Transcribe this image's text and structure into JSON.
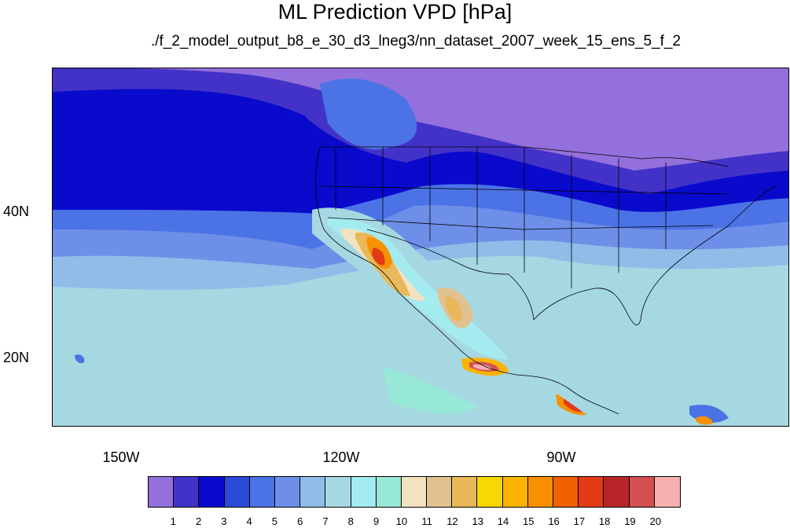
{
  "title": "ML Prediction VPD [hPa]",
  "subtitle": "./f_2_model_output_b8_e_30_d3_lneg3/nn_dataset_2007_week_15_ens_5_f_2",
  "lat_labels": [
    "40N",
    "20N"
  ],
  "lon_labels": [
    "150W",
    "120W",
    "90W"
  ],
  "colorbar": {
    "colors": [
      "#9370db",
      "#4332c8",
      "#0a0acd",
      "#2c4ad8",
      "#4b73e6",
      "#6e8fe8",
      "#8fbde8",
      "#a6d8e2",
      "#a4ebf0",
      "#98e8d8",
      "#f3e2c0",
      "#e2c191",
      "#e8b85a",
      "#f7d800",
      "#fbb300",
      "#f89000",
      "#f26000",
      "#e23b15",
      "#b82528",
      "#d35050",
      "#f6b0b0"
    ],
    "labels": [
      "1",
      "2",
      "3",
      "4",
      "5",
      "6",
      "7",
      "8",
      "9",
      "10",
      "11",
      "12",
      "13",
      "14",
      "15",
      "16",
      "17",
      "18",
      "19",
      "20"
    ]
  }
}
